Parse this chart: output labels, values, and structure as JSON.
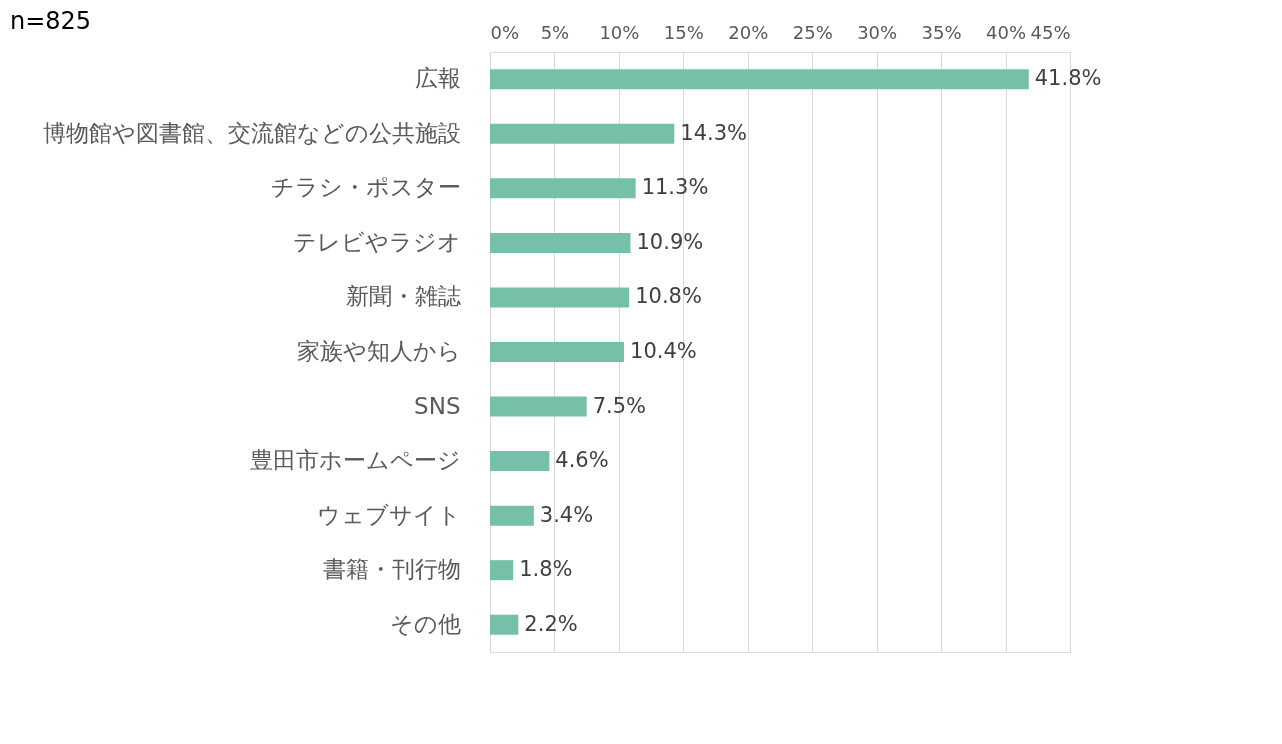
{
  "chart_data": {
    "type": "bar",
    "orientation": "horizontal",
    "categories": [
      "広報",
      "博物館や図書館、交流館などの公共施設",
      "チラシ・ポスター",
      "テレビやラジオ",
      "新聞・雑誌",
      "家族や知人から",
      "SNS",
      "豊田市ホームページ",
      "ウェブサイト",
      "書籍・刊行物",
      "その他"
    ],
    "values": [
      41.8,
      14.3,
      11.3,
      10.9,
      10.8,
      10.4,
      7.5,
      4.6,
      3.4,
      1.8,
      2.2
    ],
    "value_labels": [
      "41.8%",
      "14.3%",
      "11.3%",
      "10.9%",
      "10.8%",
      "10.4%",
      "7.5%",
      "4.6%",
      "3.4%",
      "1.8%",
      "2.2%"
    ],
    "color": "#76bfa8",
    "xlim": [
      0,
      45
    ],
    "xticks": [
      {
        "value": 0,
        "label": "0%"
      },
      {
        "value": 5,
        "label": "5%"
      },
      {
        "value": 10,
        "label": "10%"
      },
      {
        "value": 15,
        "label": "15%"
      },
      {
        "value": 20,
        "label": "20%"
      },
      {
        "value": 25,
        "label": "25%"
      },
      {
        "value": 30,
        "label": "30%"
      },
      {
        "value": 35,
        "label": "35%"
      },
      {
        "value": 40,
        "label": "40%"
      },
      {
        "value": 45,
        "label": "45%"
      }
    ],
    "grid": "x",
    "annotations": [
      "n=825"
    ]
  }
}
